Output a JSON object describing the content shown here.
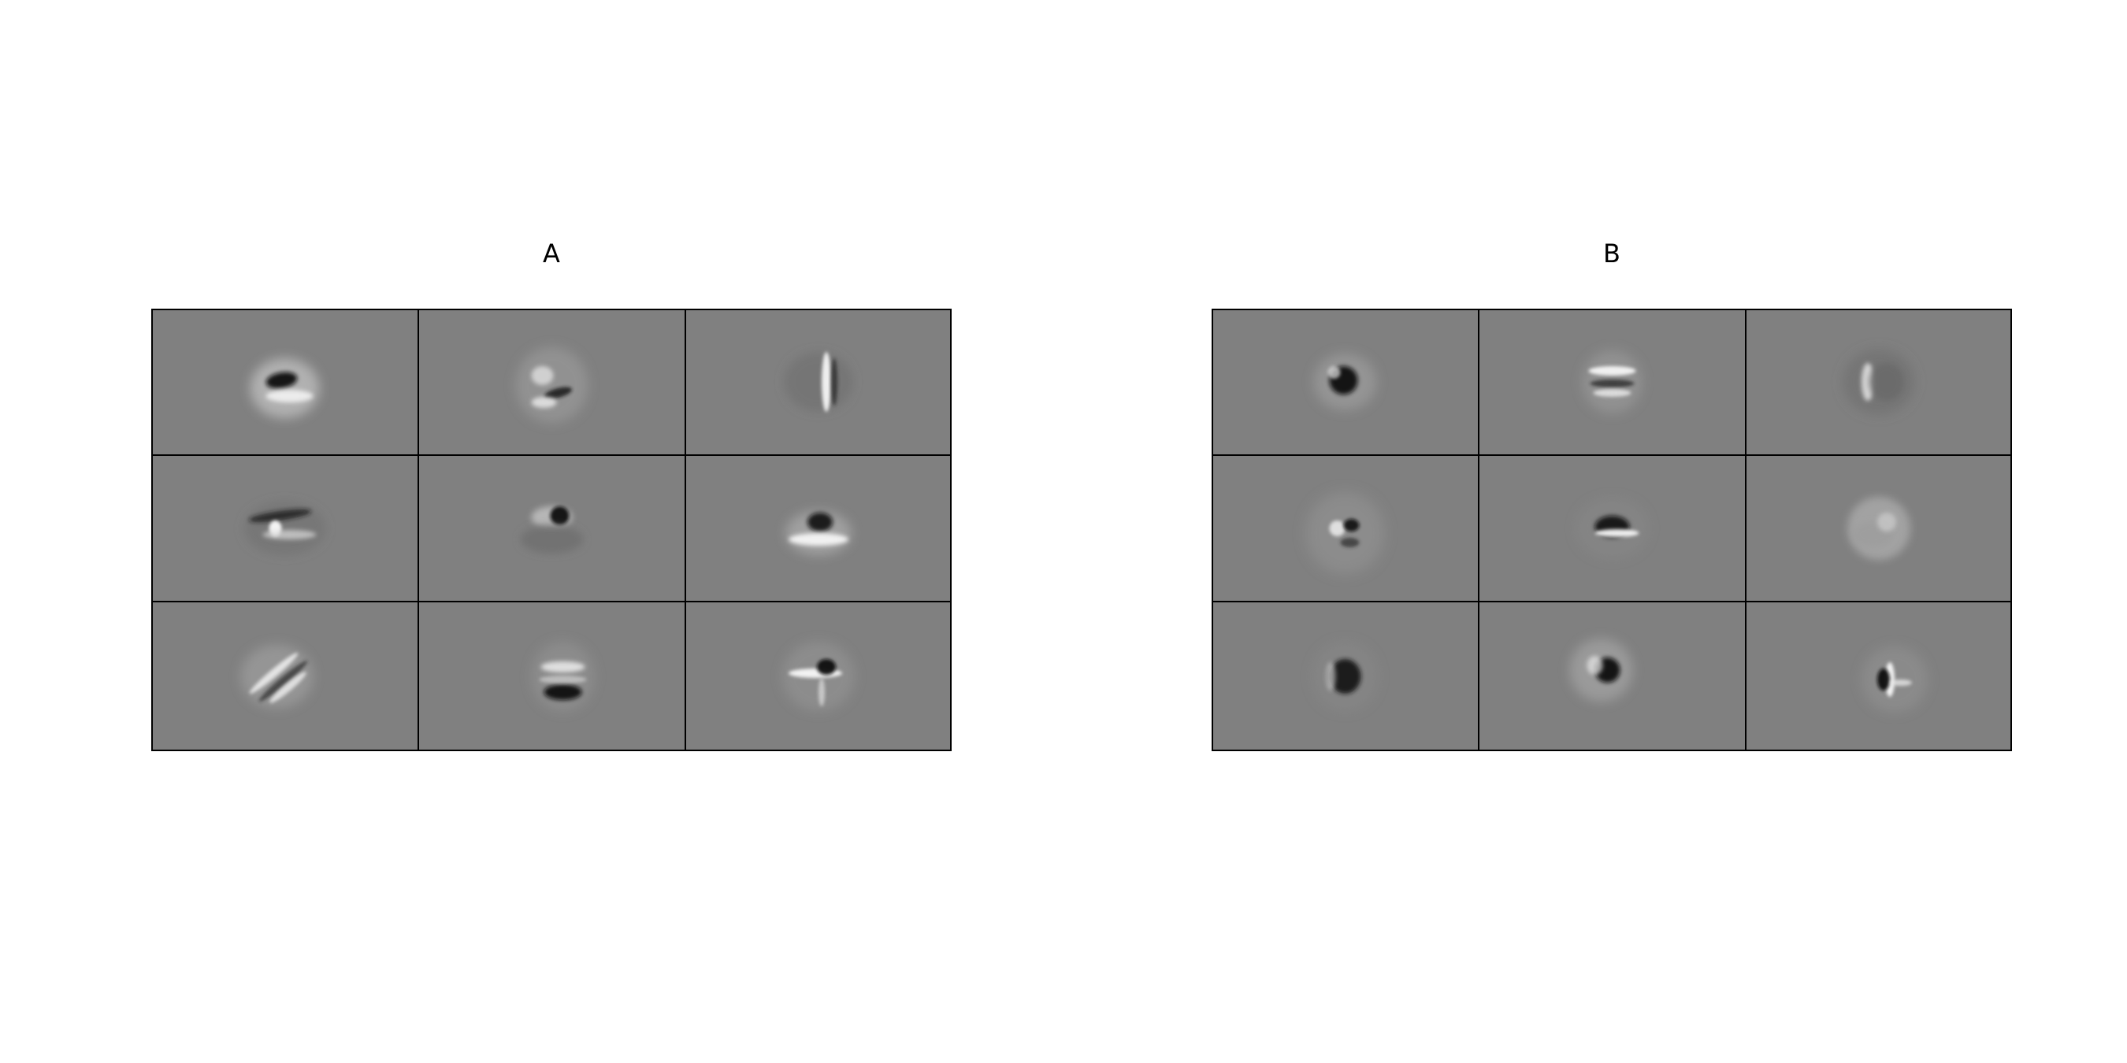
{
  "figure": {
    "background_color": "#ffffff",
    "tile_background_color": "#808080",
    "grid_line_color": "#000000",
    "panels": [
      {
        "label": "A",
        "rows": 3,
        "cols": 3,
        "tiles": [
          {
            "pattern": "dark-blob-with-bright-lower-band"
          },
          {
            "pattern": "mottled-blob-with-dark-horizontal-bands"
          },
          {
            "pattern": "bright-vertical-bar-with-dark-edges"
          },
          {
            "pattern": "dark-crescent-with-bright-spot"
          },
          {
            "pattern": "dark-upper-blob-over-gray-patch"
          },
          {
            "pattern": "dark-spot-over-bright-horizontal-band"
          },
          {
            "pattern": "diagonal-bright-streaks"
          },
          {
            "pattern": "dark-lower-band-with-bright-upper-band"
          },
          {
            "pattern": "bright-horizontal-streak-with-dark-spot"
          }
        ]
      },
      {
        "label": "B",
        "rows": 3,
        "cols": 3,
        "tiles": [
          {
            "pattern": "dark-diagonal-blob"
          },
          {
            "pattern": "bright-horizontal-bands"
          },
          {
            "pattern": "bright-left-edge-dark-right-disc"
          },
          {
            "pattern": "mottled-blob-with-dark-spots"
          },
          {
            "pattern": "dark-crescent-with-bright-band"
          },
          {
            "pattern": "bright-irregular-blob"
          },
          {
            "pattern": "dark-round-blob"
          },
          {
            "pattern": "dark-round-blob-bright-left"
          },
          {
            "pattern": "bright-vertical-bar-with-dark-center"
          }
        ]
      }
    ]
  }
}
